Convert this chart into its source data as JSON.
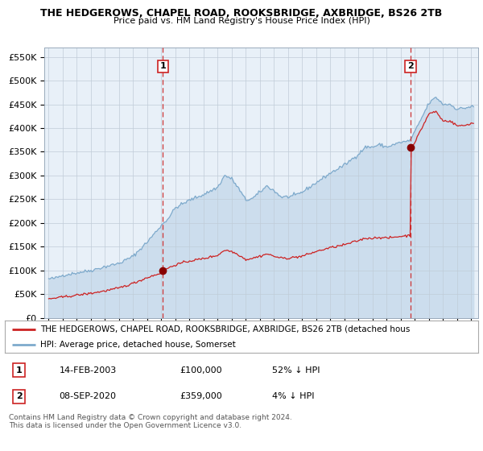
{
  "title": "THE HEDGEROWS, CHAPEL ROAD, ROOKSBRIDGE, AXBRIDGE, BS26 2TB",
  "subtitle": "Price paid vs. HM Land Registry's House Price Index (HPI)",
  "hpi_color": "#7eaacc",
  "hpi_fill_color": "#ccdded",
  "price_color": "#cc2222",
  "bg_color": "#f0f4f8",
  "plot_bg": "#e8f0f8",
  "ylim": [
    0,
    570000
  ],
  "yticks": [
    0,
    50000,
    100000,
    150000,
    200000,
    250000,
    300000,
    350000,
    400000,
    450000,
    500000,
    550000
  ],
  "ytick_labels": [
    "£0",
    "£50K",
    "£100K",
    "£150K",
    "£200K",
    "£250K",
    "£300K",
    "£350K",
    "£400K",
    "£450K",
    "£500K",
    "£550K"
  ],
  "sale1_date": 2003.12,
  "sale1_price": 100000,
  "sale2_date": 2020.69,
  "sale2_price": 359000,
  "legend_label1": "THE HEDGEROWS, CHAPEL ROAD, ROOKSBRIDGE, AXBRIDGE, BS26 2TB (detached hous",
  "legend_label2": "HPI: Average price, detached house, Somerset",
  "footnote": "Contains HM Land Registry data © Crown copyright and database right 2024.\nThis data is licensed under the Open Government Licence v3.0.",
  "xlim_start": 1994.7,
  "xlim_end": 2025.5,
  "table_row1": [
    "14-FEB-2003",
    "£100,000",
    "52% ↓ HPI"
  ],
  "table_row2": [
    "08-SEP-2020",
    "£359,000",
    "4% ↓ HPI"
  ]
}
